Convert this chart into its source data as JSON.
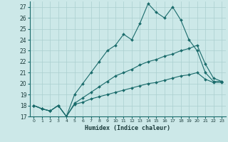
{
  "xlabel": "Humidex (Indice chaleur)",
  "bg_color": "#cce8e8",
  "grid_color": "#aacfcf",
  "line_color": "#1a6b6b",
  "xlim": [
    -0.5,
    23.5
  ],
  "ylim": [
    17,
    27.5
  ],
  "yticks": [
    17,
    18,
    19,
    20,
    21,
    22,
    23,
    24,
    25,
    26,
    27
  ],
  "xticks": [
    0,
    1,
    2,
    3,
    4,
    5,
    6,
    7,
    8,
    9,
    10,
    11,
    12,
    13,
    14,
    15,
    16,
    17,
    18,
    19,
    20,
    21,
    22,
    23
  ],
  "series": [
    {
      "x": [
        0,
        1,
        2,
        3,
        4,
        5,
        6,
        7,
        8,
        9,
        10,
        11,
        12,
        13,
        14,
        15,
        16,
        17,
        18,
        19,
        20,
        21,
        22,
        23
      ],
      "y": [
        18,
        17.7,
        17.5,
        18,
        17,
        19,
        20,
        21,
        22,
        23,
        23.5,
        24.5,
        24,
        25.5,
        27.3,
        26.5,
        26,
        27,
        25.8,
        24,
        23,
        21,
        20.2,
        20.2
      ]
    },
    {
      "x": [
        0,
        1,
        2,
        3,
        4,
        5,
        6,
        7,
        8,
        9,
        10,
        11,
        12,
        13,
        14,
        15,
        16,
        17,
        18,
        19,
        20,
        21,
        22,
        23
      ],
      "y": [
        18,
        17.7,
        17.5,
        18,
        17,
        18.2,
        18.7,
        19.2,
        19.7,
        20.2,
        20.7,
        21.0,
        21.3,
        21.7,
        22.0,
        22.2,
        22.5,
        22.7,
        23.0,
        23.2,
        23.5,
        21.8,
        20.5,
        20.2
      ]
    },
    {
      "x": [
        0,
        1,
        2,
        3,
        4,
        5,
        6,
        7,
        8,
        9,
        10,
        11,
        12,
        13,
        14,
        15,
        16,
        17,
        18,
        19,
        20,
        21,
        22,
        23
      ],
      "y": [
        18,
        17.7,
        17.5,
        18,
        17,
        18.1,
        18.3,
        18.6,
        18.8,
        19.0,
        19.2,
        19.4,
        19.6,
        19.8,
        20.0,
        20.1,
        20.3,
        20.5,
        20.7,
        20.8,
        21.0,
        20.4,
        20.1,
        20.1
      ]
    }
  ]
}
